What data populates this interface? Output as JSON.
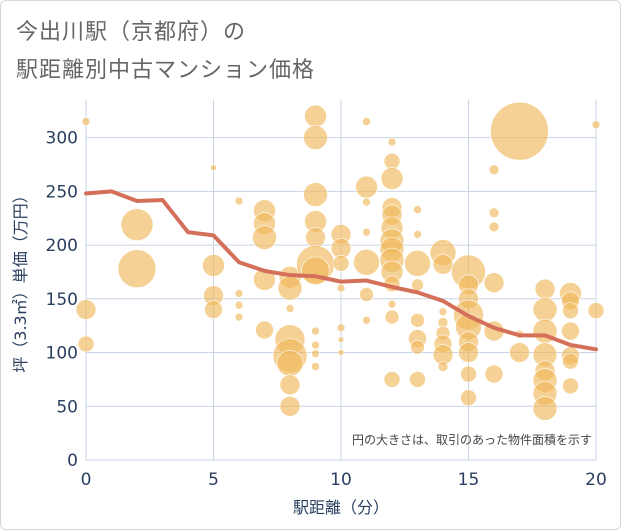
{
  "title_line1": "今出川駅（京都府）の",
  "title_line2": "駅距離別中古マンション価格",
  "chart_data": {
    "type": "scatter",
    "xlabel": "駅距離（分）",
    "ylabel": "坪（3.3㎡）単価（万円）",
    "xlim": [
      0,
      20
    ],
    "ylim": [
      0,
      335
    ],
    "xticks": [
      0,
      5,
      10,
      15,
      20
    ],
    "yticks": [
      0,
      50,
      100,
      150,
      200,
      250,
      300
    ],
    "grid": true,
    "annotation": "円の大きさは、取引のあった物件面積を示す",
    "bubble_color": "#f0b85c",
    "line_color": "#d4705a",
    "line": {
      "x": [
        0,
        1,
        2,
        3,
        4,
        5,
        6,
        7,
        8,
        9,
        10,
        11,
        12,
        13,
        14,
        15,
        16,
        17,
        18,
        19,
        20
      ],
      "y": [
        248,
        250,
        241,
        242,
        212,
        209,
        184,
        176,
        172,
        171,
        166,
        167,
        161,
        156,
        148,
        134,
        123,
        116,
        116,
        107,
        103
      ]
    },
    "bubbles": [
      {
        "x": 0,
        "y": 315,
        "s": 4
      },
      {
        "x": 0,
        "y": 140,
        "s": 10
      },
      {
        "x": 0,
        "y": 108,
        "s": 8
      },
      {
        "x": 2,
        "y": 219,
        "s": 16
      },
      {
        "x": 2,
        "y": 178,
        "s": 19
      },
      {
        "x": 5,
        "y": 272,
        "s": 3
      },
      {
        "x": 5,
        "y": 181,
        "s": 11
      },
      {
        "x": 5,
        "y": 153,
        "s": 10
      },
      {
        "x": 5,
        "y": 140,
        "s": 9
      },
      {
        "x": 6,
        "y": 241,
        "s": 4
      },
      {
        "x": 6,
        "y": 155,
        "s": 4
      },
      {
        "x": 6,
        "y": 144,
        "s": 4
      },
      {
        "x": 6,
        "y": 133,
        "s": 4
      },
      {
        "x": 7,
        "y": 232,
        "s": 11
      },
      {
        "x": 7,
        "y": 220,
        "s": 11
      },
      {
        "x": 7,
        "y": 207,
        "s": 12
      },
      {
        "x": 7,
        "y": 168,
        "s": 11
      },
      {
        "x": 7,
        "y": 121,
        "s": 9
      },
      {
        "x": 8,
        "y": 170,
        "s": 11
      },
      {
        "x": 8,
        "y": 160,
        "s": 12
      },
      {
        "x": 8,
        "y": 141,
        "s": 4
      },
      {
        "x": 8,
        "y": 112,
        "s": 15
      },
      {
        "x": 8,
        "y": 97,
        "s": 17
      },
      {
        "x": 8,
        "y": 90,
        "s": 13
      },
      {
        "x": 8,
        "y": 70,
        "s": 10
      },
      {
        "x": 8,
        "y": 50,
        "s": 10
      },
      {
        "x": 9,
        "y": 320,
        "s": 11
      },
      {
        "x": 9,
        "y": 300,
        "s": 12
      },
      {
        "x": 9,
        "y": 247,
        "s": 12
      },
      {
        "x": 9,
        "y": 222,
        "s": 11
      },
      {
        "x": 9,
        "y": 207,
        "s": 10
      },
      {
        "x": 9,
        "y": 182,
        "s": 19
      },
      {
        "x": 9,
        "y": 176,
        "s": 14
      },
      {
        "x": 9,
        "y": 120,
        "s": 4
      },
      {
        "x": 9,
        "y": 107,
        "s": 4
      },
      {
        "x": 9,
        "y": 99,
        "s": 4
      },
      {
        "x": 9,
        "y": 87,
        "s": 4
      },
      {
        "x": 10,
        "y": 210,
        "s": 10
      },
      {
        "x": 10,
        "y": 197,
        "s": 10
      },
      {
        "x": 10,
        "y": 183,
        "s": 8
      },
      {
        "x": 10,
        "y": 160,
        "s": 4
      },
      {
        "x": 10,
        "y": 123,
        "s": 4
      },
      {
        "x": 10,
        "y": 112,
        "s": 3
      },
      {
        "x": 10,
        "y": 100,
        "s": 3
      },
      {
        "x": 11,
        "y": 315,
        "s": 4
      },
      {
        "x": 11,
        "y": 254,
        "s": 11
      },
      {
        "x": 11,
        "y": 240,
        "s": 4
      },
      {
        "x": 11,
        "y": 212,
        "s": 4
      },
      {
        "x": 11,
        "y": 184,
        "s": 13
      },
      {
        "x": 11,
        "y": 154,
        "s": 7
      },
      {
        "x": 11,
        "y": 130,
        "s": 4
      },
      {
        "x": 12,
        "y": 296,
        "s": 4
      },
      {
        "x": 12,
        "y": 278,
        "s": 8
      },
      {
        "x": 12,
        "y": 262,
        "s": 11
      },
      {
        "x": 12,
        "y": 235,
        "s": 10
      },
      {
        "x": 12,
        "y": 228,
        "s": 10
      },
      {
        "x": 12,
        "y": 216,
        "s": 11
      },
      {
        "x": 12,
        "y": 204,
        "s": 12
      },
      {
        "x": 12,
        "y": 196,
        "s": 12
      },
      {
        "x": 12,
        "y": 186,
        "s": 12
      },
      {
        "x": 12,
        "y": 175,
        "s": 11
      },
      {
        "x": 12,
        "y": 164,
        "s": 8
      },
      {
        "x": 12,
        "y": 145,
        "s": 4
      },
      {
        "x": 12,
        "y": 133,
        "s": 7
      },
      {
        "x": 12,
        "y": 75,
        "s": 8
      },
      {
        "x": 13,
        "y": 233,
        "s": 4
      },
      {
        "x": 13,
        "y": 210,
        "s": 4
      },
      {
        "x": 13,
        "y": 183,
        "s": 13
      },
      {
        "x": 13,
        "y": 163,
        "s": 6
      },
      {
        "x": 13,
        "y": 130,
        "s": 7
      },
      {
        "x": 13,
        "y": 113,
        "s": 9
      },
      {
        "x": 13,
        "y": 105,
        "s": 7
      },
      {
        "x": 13,
        "y": 75,
        "s": 8
      },
      {
        "x": 14,
        "y": 193,
        "s": 13
      },
      {
        "x": 14,
        "y": 182,
        "s": 10
      },
      {
        "x": 14,
        "y": 138,
        "s": 4
      },
      {
        "x": 14,
        "y": 128,
        "s": 5
      },
      {
        "x": 14,
        "y": 118,
        "s": 7
      },
      {
        "x": 14,
        "y": 108,
        "s": 9
      },
      {
        "x": 14,
        "y": 98,
        "s": 10
      },
      {
        "x": 14,
        "y": 87,
        "s": 5
      },
      {
        "x": 15,
        "y": 175,
        "s": 17
      },
      {
        "x": 15,
        "y": 163,
        "s": 10
      },
      {
        "x": 15,
        "y": 150,
        "s": 10
      },
      {
        "x": 15,
        "y": 135,
        "s": 15
      },
      {
        "x": 15,
        "y": 124,
        "s": 13
      },
      {
        "x": 15,
        "y": 110,
        "s": 10
      },
      {
        "x": 15,
        "y": 100,
        "s": 10
      },
      {
        "x": 15,
        "y": 80,
        "s": 8
      },
      {
        "x": 15,
        "y": 58,
        "s": 8
      },
      {
        "x": 16,
        "y": 270,
        "s": 5
      },
      {
        "x": 16,
        "y": 230,
        "s": 5
      },
      {
        "x": 16,
        "y": 217,
        "s": 5
      },
      {
        "x": 16,
        "y": 165,
        "s": 10
      },
      {
        "x": 16,
        "y": 120,
        "s": 10
      },
      {
        "x": 16,
        "y": 80,
        "s": 9
      },
      {
        "x": 17,
        "y": 306,
        "s": 29
      },
      {
        "x": 17,
        "y": 117,
        "s": 4
      },
      {
        "x": 17,
        "y": 100,
        "s": 10
      },
      {
        "x": 18,
        "y": 159,
        "s": 10
      },
      {
        "x": 18,
        "y": 140,
        "s": 12
      },
      {
        "x": 18,
        "y": 120,
        "s": 12
      },
      {
        "x": 18,
        "y": 98,
        "s": 12
      },
      {
        "x": 18,
        "y": 83,
        "s": 10
      },
      {
        "x": 18,
        "y": 74,
        "s": 12
      },
      {
        "x": 18,
        "y": 62,
        "s": 12
      },
      {
        "x": 18,
        "y": 48,
        "s": 12
      },
      {
        "x": 19,
        "y": 155,
        "s": 11
      },
      {
        "x": 19,
        "y": 148,
        "s": 9
      },
      {
        "x": 19,
        "y": 139,
        "s": 8
      },
      {
        "x": 19,
        "y": 120,
        "s": 9
      },
      {
        "x": 19,
        "y": 97,
        "s": 9
      },
      {
        "x": 19,
        "y": 92,
        "s": 8
      },
      {
        "x": 19,
        "y": 69,
        "s": 8
      },
      {
        "x": 20,
        "y": 312,
        "s": 4
      },
      {
        "x": 20,
        "y": 139,
        "s": 8
      }
    ]
  }
}
